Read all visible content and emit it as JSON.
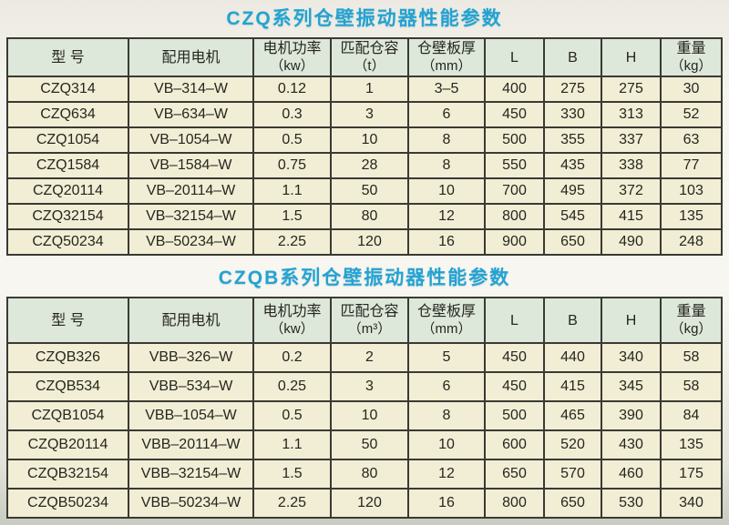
{
  "colors": {
    "title_accent": "#23a3d2",
    "header_cell_bg": "#dde7da",
    "data_cell_bg": "#f1eed5",
    "table_border": "#3a3a33",
    "text": "#26261f"
  },
  "tables": [
    {
      "title": "CZQ系列仓壁振动器性能参数",
      "columns": [
        {
          "line1": "型 号",
          "line2": ""
        },
        {
          "line1": "配用电机",
          "line2": ""
        },
        {
          "line1": "电机功率",
          "line2": "（kw）"
        },
        {
          "line1": "匹配仓容",
          "line2": "（t）"
        },
        {
          "line1": "仓壁板厚",
          "line2": "（mm）"
        },
        {
          "line1": "L",
          "line2": ""
        },
        {
          "line1": "B",
          "line2": ""
        },
        {
          "line1": "H",
          "line2": ""
        },
        {
          "line1": "重量",
          "line2": "（kg）"
        }
      ],
      "rows": [
        [
          "CZQ314",
          "VB–314–W",
          "0.12",
          "1",
          "3–5",
          "400",
          "275",
          "275",
          "30"
        ],
        [
          "CZQ634",
          "VB–634–W",
          "0.3",
          "3",
          "6",
          "450",
          "330",
          "313",
          "52"
        ],
        [
          "CZQ1054",
          "VB–1054–W",
          "0.5",
          "10",
          "8",
          "500",
          "355",
          "337",
          "63"
        ],
        [
          "CZQ1584",
          "VB–1584–W",
          "0.75",
          "28",
          "8",
          "550",
          "435",
          "338",
          "77"
        ],
        [
          "CZQ20114",
          "VB–20114–W",
          "1.1",
          "50",
          "10",
          "700",
          "495",
          "372",
          "103"
        ],
        [
          "CZQ32154",
          "VB–32154–W",
          "1.5",
          "80",
          "12",
          "800",
          "545",
          "415",
          "135"
        ],
        [
          "CZQ50234",
          "VB–50234–W",
          "2.25",
          "120",
          "16",
          "900",
          "650",
          "490",
          "248"
        ]
      ]
    },
    {
      "title": "CZQB系列仓壁振动器性能参数",
      "columns": [
        {
          "line1": "型 号",
          "line2": ""
        },
        {
          "line1": "配用电机",
          "line2": ""
        },
        {
          "line1": "电机功率",
          "line2": "（kw）"
        },
        {
          "line1": "匹配仓容",
          "line2": "（m³）"
        },
        {
          "line1": "仓壁板厚",
          "line2": "（mm）"
        },
        {
          "line1": "L",
          "line2": ""
        },
        {
          "line1": "B",
          "line2": ""
        },
        {
          "line1": "H",
          "line2": ""
        },
        {
          "line1": "重量",
          "line2": "（kg）"
        }
      ],
      "rows": [
        [
          "CZQB326",
          "VBB–326–W",
          "0.2",
          "2",
          "5",
          "450",
          "440",
          "340",
          "58"
        ],
        [
          "CZQB534",
          "VBB–534–W",
          "0.25",
          "3",
          "6",
          "450",
          "415",
          "345",
          "58"
        ],
        [
          "CZQB1054",
          "VBB–1054–W",
          "0.5",
          "10",
          "8",
          "500",
          "465",
          "390",
          "84"
        ],
        [
          "CZQB20114",
          "VBB–20114–W",
          "1.1",
          "50",
          "10",
          "600",
          "520",
          "430",
          "135"
        ],
        [
          "CZQB32154",
          "VBB–32154–W",
          "1.5",
          "80",
          "12",
          "650",
          "570",
          "460",
          "175"
        ],
        [
          "CZQB50234",
          "VBB–50234–W",
          "2.25",
          "120",
          "16",
          "800",
          "650",
          "530",
          "340"
        ]
      ]
    }
  ]
}
